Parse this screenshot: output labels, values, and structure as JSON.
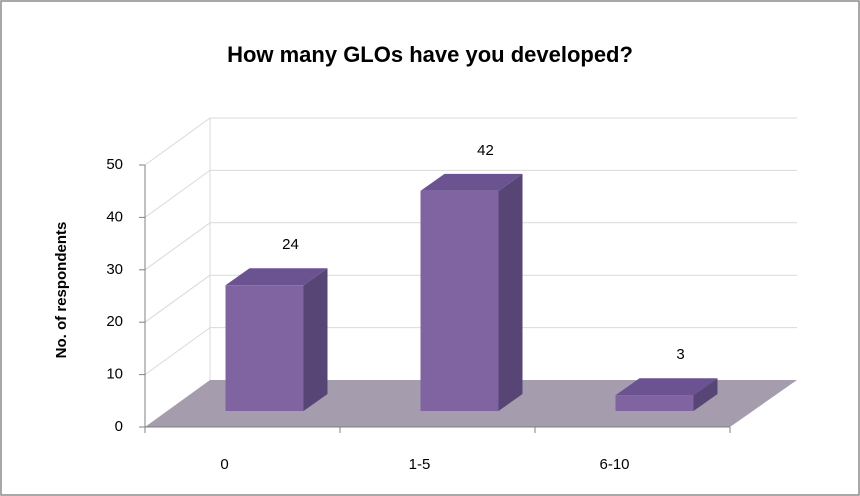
{
  "chart_data": {
    "type": "bar3d",
    "title": "How many GLOs have you developed?",
    "ylabel": "No. of respondents",
    "categories": [
      "0",
      "1-5",
      "6-10"
    ],
    "values": [
      24,
      42,
      3
    ],
    "color": "#8064a2",
    "ylim": [
      0,
      50
    ],
    "yticks": [
      0,
      10,
      20,
      30,
      40,
      50
    ],
    "grid": true
  }
}
